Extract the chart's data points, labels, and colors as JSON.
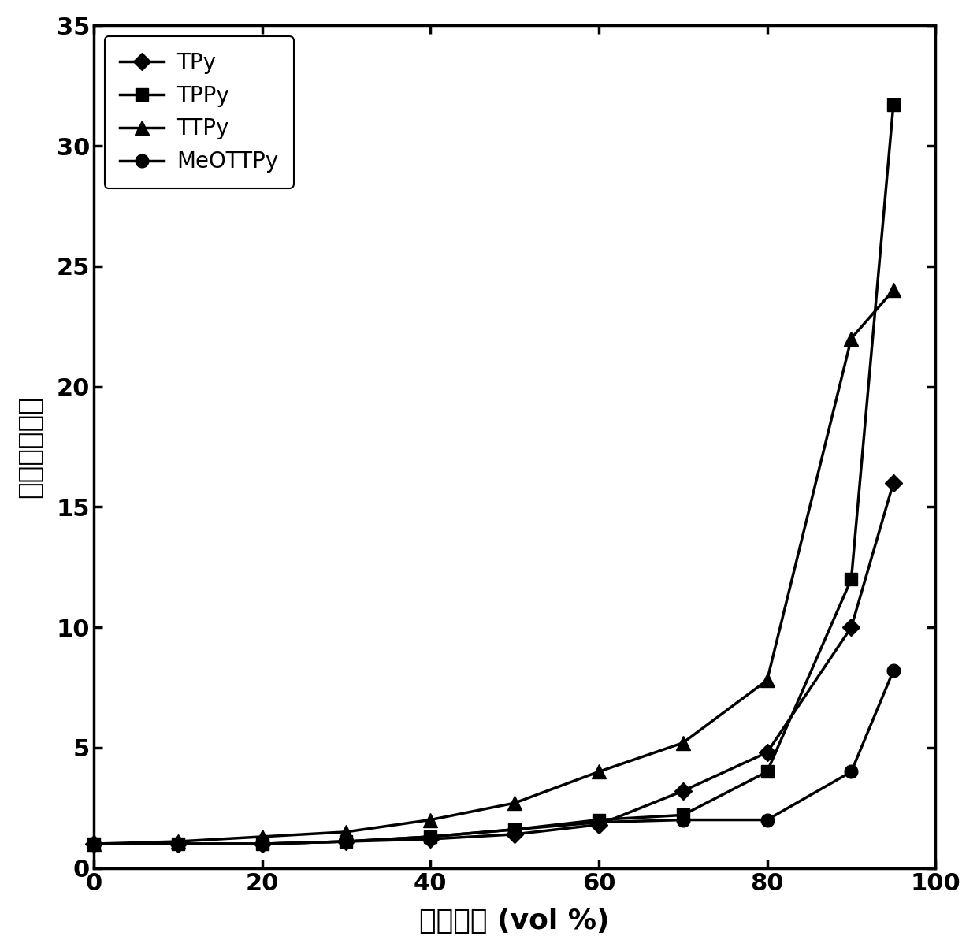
{
  "title": "",
  "xlabel": "甲苯含量 (vol %)",
  "ylabel": "荧光增强倍数",
  "xlim": [
    0,
    100
  ],
  "ylim": [
    0,
    35
  ],
  "xticks": [
    0,
    20,
    40,
    60,
    80,
    100
  ],
  "yticks": [
    0,
    5,
    10,
    15,
    20,
    25,
    30,
    35
  ],
  "series": [
    {
      "label": "TPy",
      "marker": "D",
      "markersize": 11,
      "x": [
        0,
        10,
        20,
        30,
        40,
        50,
        60,
        70,
        80,
        90,
        95
      ],
      "y": [
        1.0,
        1.0,
        1.0,
        1.1,
        1.2,
        1.4,
        1.8,
        3.2,
        4.8,
        10.0,
        16.0
      ]
    },
    {
      "label": "TPPy",
      "marker": "s",
      "markersize": 11,
      "x": [
        0,
        10,
        20,
        30,
        40,
        50,
        60,
        70,
        80,
        90,
        95
      ],
      "y": [
        1.0,
        1.0,
        1.0,
        1.1,
        1.3,
        1.6,
        2.0,
        2.2,
        4.0,
        12.0,
        31.7
      ]
    },
    {
      "label": "TTPy",
      "marker": "^",
      "markersize": 13,
      "x": [
        0,
        10,
        20,
        30,
        40,
        50,
        60,
        70,
        80,
        90,
        95
      ],
      "y": [
        1.0,
        1.1,
        1.3,
        1.5,
        2.0,
        2.7,
        4.0,
        5.2,
        7.8,
        22.0,
        24.0
      ]
    },
    {
      "label": "MeOTTPy",
      "marker": "o",
      "markersize": 12,
      "x": [
        0,
        10,
        20,
        30,
        40,
        50,
        60,
        70,
        80,
        90,
        95
      ],
      "y": [
        1.0,
        1.0,
        1.0,
        1.1,
        1.3,
        1.6,
        1.9,
        2.0,
        2.0,
        4.0,
        8.2
      ]
    }
  ],
  "line_color": "#000000",
  "background_color": "#ffffff",
  "legend_fontsize": 20,
  "axis_label_fontsize": 26,
  "tick_fontsize": 22,
  "linewidth": 2.5
}
